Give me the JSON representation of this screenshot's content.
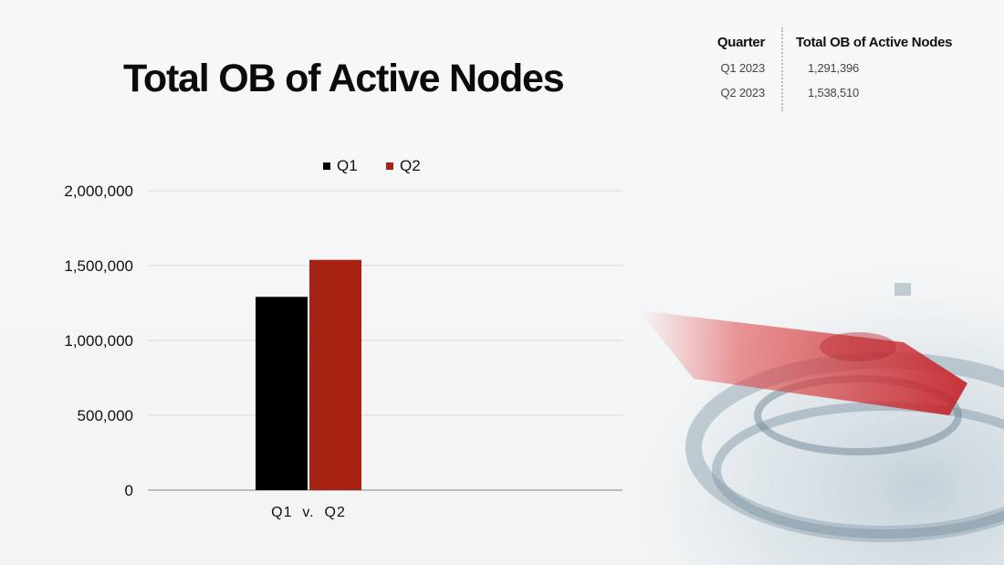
{
  "title": "Total OB of Active Nodes",
  "summary_table": {
    "headers": [
      "Quarter",
      "Total OB of Active Nodes"
    ],
    "rows": [
      {
        "quarter": "Q1 2023",
        "value": "1,291,396"
      },
      {
        "quarter": "Q2 2023",
        "value": "1,538,510"
      }
    ]
  },
  "colors": {
    "q1": "#000000",
    "q2": "#a62213"
  },
  "chart_data": {
    "type": "bar",
    "title": "",
    "categories": [
      "Q1  v.  Q2"
    ],
    "series": [
      {
        "name": "Q1",
        "values": [
          1291396
        ],
        "color": "#000000"
      },
      {
        "name": "Q2",
        "values": [
          1538510
        ],
        "color": "#a62213"
      }
    ],
    "ylim": [
      0,
      2000000
    ],
    "yticks": [
      0,
      500000,
      1000000,
      1500000,
      2000000
    ],
    "ytick_labels": [
      "0",
      "500,000",
      "1,000,000",
      "1,500,000",
      "2,000,000"
    ],
    "xlabel": "",
    "ylabel": "",
    "grid": true,
    "legend": "top-center"
  }
}
